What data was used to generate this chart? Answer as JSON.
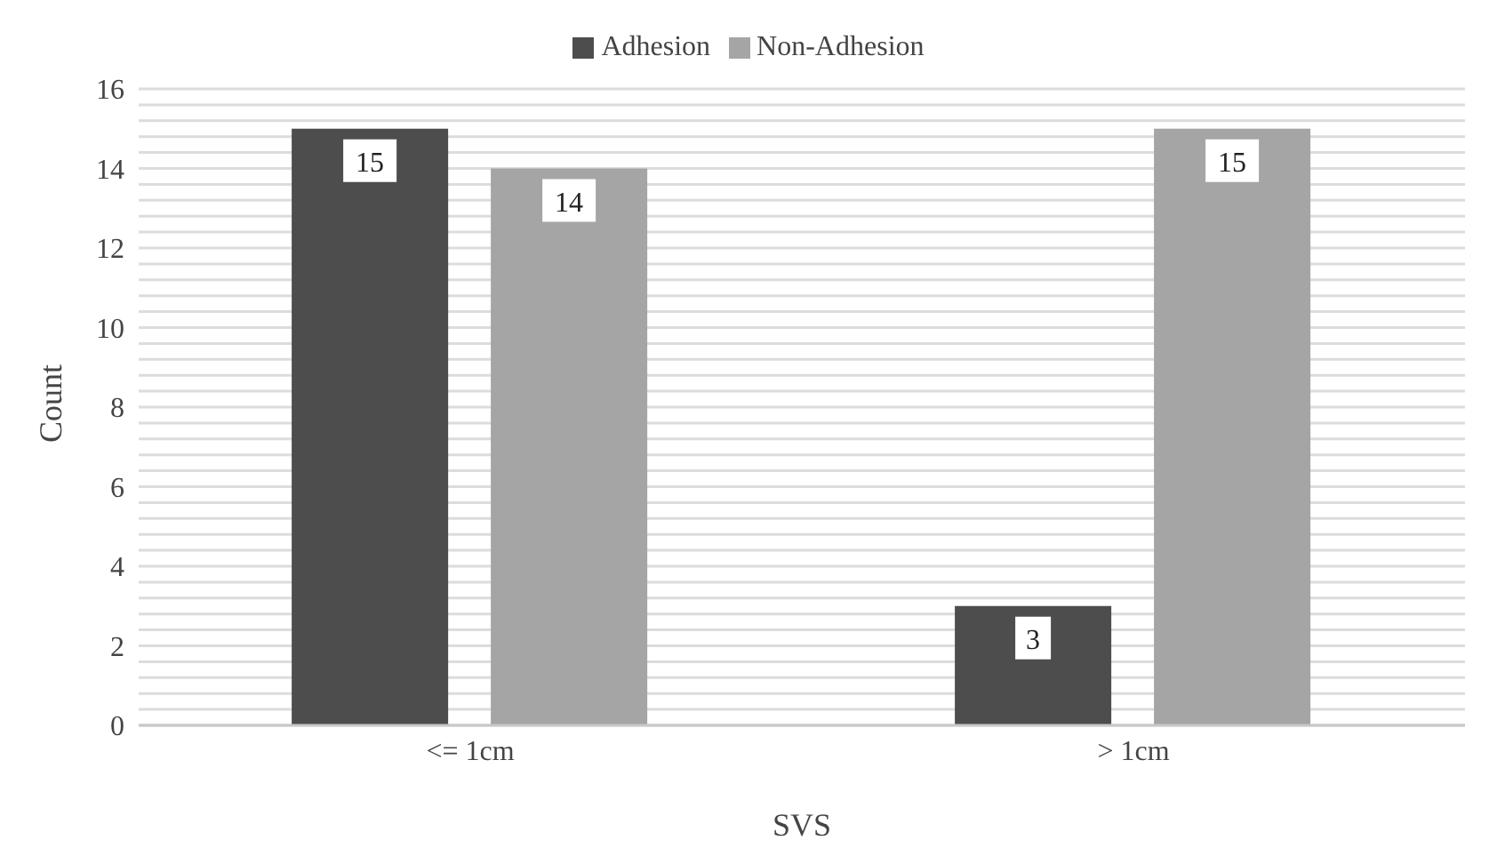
{
  "chart_data": {
    "type": "bar",
    "xlabel": "SVS",
    "ylabel": "Count",
    "categories": [
      "<= 1cm",
      "> 1cm"
    ],
    "series": [
      {
        "name": "Adhesion",
        "color": "#4d4d4d",
        "values": [
          15,
          3
        ]
      },
      {
        "name": "Non-Adhesion",
        "color": "#a5a5a5",
        "values": [
          14,
          15
        ]
      }
    ],
    "ylim": [
      0,
      16
    ],
    "yticks": [
      0,
      {
        "value": 0.4,
        "label": null
      },
      {
        "value": 0.8,
        "label": null
      },
      {
        "value": 1.2,
        "label": null
      },
      {
        "value": 1.6,
        "label": null
      },
      2,
      {
        "value": 2.4,
        "label": null
      },
      {
        "value": 2.8,
        "label": null
      },
      {
        "value": 3.2,
        "label": null
      },
      {
        "value": 3.6,
        "label": null
      },
      4,
      {
        "value": 4.4,
        "label": null
      },
      {
        "value": 4.8,
        "label": null
      },
      {
        "value": 5.2,
        "label": null
      },
      {
        "value": 5.6,
        "label": null
      },
      6,
      {
        "value": 6.4,
        "label": null
      },
      {
        "value": 6.8,
        "label": null
      },
      {
        "value": 7.2,
        "label": null
      },
      {
        "value": 7.6,
        "label": null
      },
      8,
      {
        "value": 8.4,
        "label": null
      },
      {
        "value": 8.8,
        "label": null
      },
      {
        "value": 9.2,
        "label": null
      },
      {
        "value": 9.6,
        "label": null
      },
      10,
      {
        "value": 10.4,
        "label": null
      },
      {
        "value": 10.8,
        "label": null
      },
      {
        "value": 11.2,
        "label": null
      },
      {
        "value": 11.6,
        "label": null
      },
      12,
      {
        "value": 12.4,
        "label": null
      },
      {
        "value": 12.8,
        "label": null
      },
      {
        "value": 13.2,
        "label": null
      },
      {
        "value": 13.6,
        "label": null
      },
      14,
      {
        "value": 14.4,
        "label": null
      },
      {
        "value": 14.8,
        "label": null
      },
      {
        "value": 15.2,
        "label": null
      },
      {
        "value": 15.6,
        "label": null
      },
      16
    ],
    "grid": "y",
    "legend": "top",
    "data_labels": true
  }
}
